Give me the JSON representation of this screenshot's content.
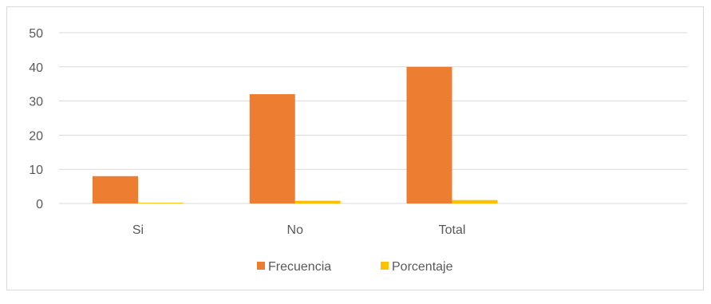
{
  "chart_data": {
    "type": "bar",
    "categories": [
      "Si",
      "No",
      "Total",
      ""
    ],
    "series": [
      {
        "name": "Frecuencia",
        "values": [
          8,
          32,
          40,
          null
        ],
        "color": "#ED7D31"
      },
      {
        "name": "Porcentaje",
        "values": [
          0.2,
          0.8,
          1,
          null
        ],
        "color": "#FFC000"
      }
    ],
    "yticks": [
      0,
      10,
      20,
      30,
      40,
      50
    ],
    "ylim": [
      0,
      50
    ],
    "grid": true,
    "legend": "bottom-center",
    "title": "",
    "xlabel": "",
    "ylabel": ""
  }
}
